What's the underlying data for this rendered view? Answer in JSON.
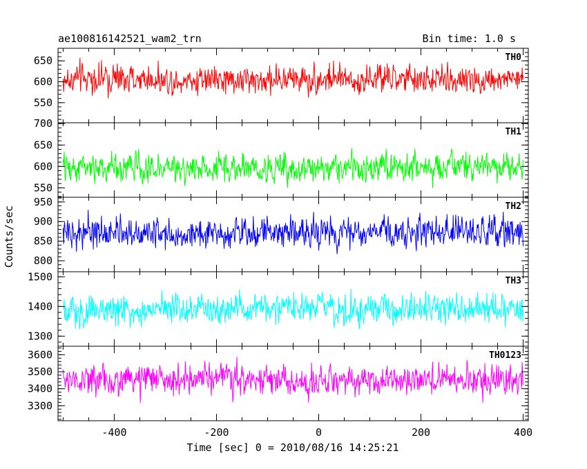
{
  "header": {
    "title": "ae100816142521_wam2_trn",
    "bin_time": "Bin time: 1.0 s"
  },
  "chart_data": {
    "type": "line",
    "xlabel": "Time [sec] 0 = 2010/08/16 14:25:21",
    "ylabel": "Counts/sec",
    "xlim": [
      -510,
      410
    ],
    "x_ticks": [
      -400,
      -200,
      0,
      200,
      400
    ],
    "x_range_data": [
      -500,
      400
    ],
    "bin_time_s": 1.0,
    "panels": [
      {
        "name": "TH0",
        "color": "#ff0000",
        "ylim": [
          502,
          680
        ],
        "y_ticks": [
          550,
          600,
          650
        ],
        "mean": 605,
        "amplitude": 40
      },
      {
        "name": "TH1",
        "color": "#00ff00",
        "ylim": [
          528,
          702
        ],
        "y_ticks": [
          550,
          600,
          650,
          700
        ],
        "mean": 597,
        "amplitude": 38
      },
      {
        "name": "TH2",
        "color": "#0000ff",
        "ylim": [
          772,
          962
        ],
        "y_ticks": [
          800,
          850,
          900,
          950
        ],
        "mean": 872,
        "amplitude": 45
      },
      {
        "name": "TH3",
        "color": "#00ffff",
        "ylim": [
          1266,
          1517
        ],
        "y_ticks": [
          1300,
          1400,
          1500
        ],
        "mean": 1390,
        "amplitude": 60
      },
      {
        "name": "TH0123",
        "color": "#ff00ff",
        "ylim": [
          3212,
          3650
        ],
        "y_ticks": [
          3300,
          3400,
          3500,
          3600
        ],
        "mean": 3450,
        "amplitude": 105
      }
    ]
  }
}
